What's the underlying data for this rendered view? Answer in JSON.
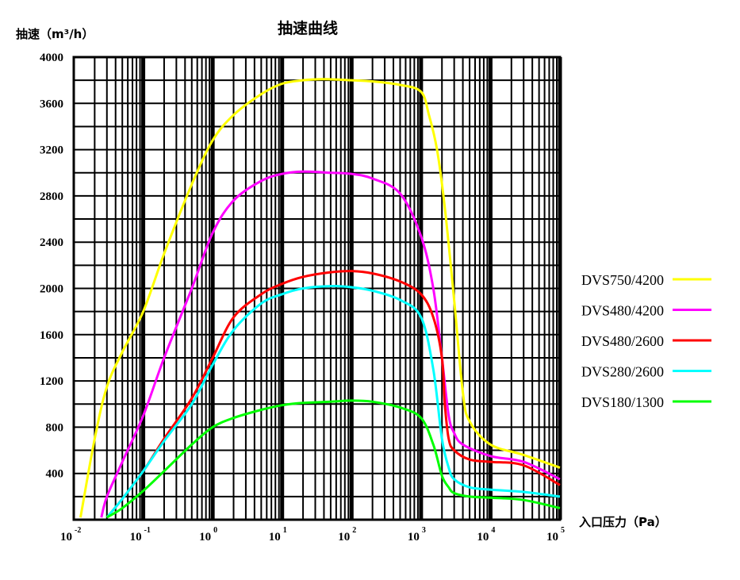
{
  "chart_data": {
    "type": "line",
    "title": "抽速曲线",
    "ylabel": "抽速（m³/h）",
    "xlabel": "入口压力（Pa）",
    "x_scale": "log",
    "xlim": [
      0.01,
      100000
    ],
    "ylim": [
      0,
      4000
    ],
    "grid": true,
    "legend_position": "right",
    "y_ticks": [
      "400",
      "800",
      "1200",
      "1600",
      "2000",
      "2400",
      "2800",
      "3200",
      "3600",
      "4000"
    ],
    "x_ticks": [
      {
        "base": "10",
        "exp": "-2"
      },
      {
        "base": "10",
        "exp": "-1"
      },
      {
        "base": "10",
        "exp": "0"
      },
      {
        "base": "10",
        "exp": "1"
      },
      {
        "base": "10",
        "exp": "2"
      },
      {
        "base": "10",
        "exp": "3"
      },
      {
        "base": "10",
        "exp": "4"
      },
      {
        "base": "10",
        "exp": "5"
      }
    ],
    "series": [
      {
        "name": "DVS750/4200",
        "color": "#ffff00",
        "x": [
          0.0125,
          0.02,
          0.03,
          0.05,
          0.1,
          0.2,
          0.5,
          1,
          2,
          5,
          10,
          20,
          40,
          100,
          200,
          500,
          1000,
          1300,
          1700,
          2200,
          3000,
          4000,
          5000,
          10000,
          30000,
          100000
        ],
        "y": [
          20,
          700,
          1150,
          1450,
          1800,
          2300,
          2900,
          3280,
          3500,
          3680,
          3770,
          3800,
          3810,
          3800,
          3790,
          3760,
          3700,
          3500,
          3200,
          2700,
          1900,
          1100,
          850,
          650,
          560,
          450
        ]
      },
      {
        "name": "DVS480/4200",
        "color": "#ff00ff",
        "x": [
          0.025,
          0.03,
          0.05,
          0.1,
          0.2,
          0.5,
          1,
          2,
          5,
          10,
          20,
          50,
          100,
          200,
          500,
          1000,
          1500,
          2000,
          2500,
          3000,
          4000,
          10000,
          30000,
          100000
        ],
        "y": [
          20,
          200,
          500,
          900,
          1400,
          2000,
          2480,
          2760,
          2930,
          2990,
          3010,
          3000,
          2990,
          2950,
          2820,
          2450,
          2000,
          1400,
          900,
          750,
          650,
          550,
          500,
          350
        ]
      },
      {
        "name": "DVS480/2600",
        "color": "#ff0000",
        "x": [
          0.03,
          0.05,
          0.1,
          0.2,
          0.5,
          1,
          2,
          5,
          10,
          20,
          50,
          100,
          200,
          500,
          1000,
          1500,
          2000,
          2200,
          2500,
          3000,
          5000,
          10000,
          30000,
          100000
        ],
        "y": [
          20,
          180,
          420,
          700,
          1050,
          1400,
          1750,
          1950,
          2040,
          2100,
          2140,
          2150,
          2130,
          2060,
          1950,
          1750,
          1400,
          1000,
          700,
          600,
          520,
          500,
          470,
          300
        ]
      },
      {
        "name": "DVS280/2600",
        "color": "#00ffff",
        "x": [
          0.03,
          0.05,
          0.1,
          0.2,
          0.5,
          1,
          2,
          5,
          10,
          20,
          50,
          100,
          200,
          500,
          1000,
          1500,
          2000,
          2500,
          3000,
          5000,
          10000,
          30000,
          100000
        ],
        "y": [
          20,
          180,
          420,
          680,
          1000,
          1340,
          1640,
          1870,
          1950,
          2000,
          2020,
          2010,
          1980,
          1900,
          1750,
          1300,
          700,
          450,
          350,
          280,
          260,
          240,
          200
        ]
      },
      {
        "name": "DVS180/1300",
        "color": "#00ff00",
        "x": [
          0.03,
          0.05,
          0.1,
          0.2,
          0.5,
          1,
          2,
          5,
          10,
          20,
          50,
          100,
          200,
          500,
          1000,
          1500,
          2000,
          2500,
          3000,
          5000,
          10000,
          30000,
          100000
        ],
        "y": [
          20,
          100,
          250,
          420,
          650,
          800,
          880,
          950,
          990,
          1010,
          1020,
          1030,
          1020,
          970,
          880,
          650,
          380,
          280,
          230,
          200,
          190,
          170,
          100
        ]
      }
    ]
  }
}
